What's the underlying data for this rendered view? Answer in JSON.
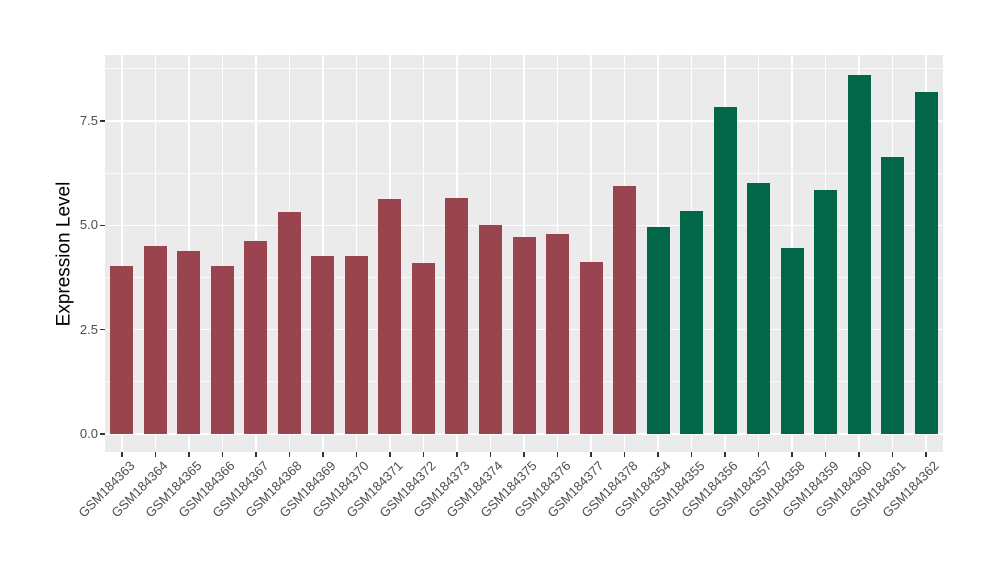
{
  "figure": {
    "background": "#ffffff",
    "panel_background": "#EBEBEB",
    "grid_color": "#FFFFFF",
    "tick_mark_color": "#333333",
    "tick_label_color": "#4D4D4D",
    "axis_title_color": "#000000"
  },
  "chart_data": {
    "type": "bar",
    "title": "",
    "xlabel": "",
    "ylabel": "Expression Level",
    "legend": "none",
    "grid": true,
    "ylim": [
      -0.43,
      9.08
    ],
    "yticks": [
      0.0,
      2.5,
      5.0,
      7.5
    ],
    "ytick_labels": [
      "0.0",
      "2.5",
      "5.0",
      "7.5"
    ],
    "minor_yticks": [
      1.25,
      3.75,
      6.25,
      8.75
    ],
    "categories": [
      "GSM184363",
      "GSM184364",
      "GSM184365",
      "GSM184366",
      "GSM184367",
      "GSM184368",
      "GSM184369",
      "GSM184370",
      "GSM184371",
      "GSM184372",
      "GSM184373",
      "GSM184374",
      "GSM184375",
      "GSM184376",
      "GSM184377",
      "GSM184378",
      "GSM184354",
      "GSM184355",
      "GSM184356",
      "GSM184357",
      "GSM184358",
      "GSM184359",
      "GSM184360",
      "GSM184361",
      "GSM184362"
    ],
    "values": [
      4.02,
      4.5,
      4.38,
      4.03,
      4.63,
      5.32,
      4.27,
      4.27,
      5.62,
      4.1,
      5.65,
      5.01,
      4.73,
      4.79,
      4.11,
      5.93,
      4.95,
      5.34,
      7.84,
      6.02,
      4.46,
      5.84,
      8.6,
      6.63,
      8.19
    ],
    "bar_colors": [
      "#9A4450",
      "#9A4450",
      "#9A4450",
      "#9A4450",
      "#9A4450",
      "#9A4450",
      "#9A4450",
      "#9A4450",
      "#9A4450",
      "#9A4450",
      "#9A4450",
      "#9A4450",
      "#9A4450",
      "#9A4450",
      "#9A4450",
      "#9A4450",
      "#026649",
      "#026649",
      "#026649",
      "#026649",
      "#026649",
      "#026649",
      "#026649",
      "#026649",
      "#026649"
    ],
    "group_palette": {
      "left_group": "#9A4450",
      "right_group": "#026649"
    }
  }
}
